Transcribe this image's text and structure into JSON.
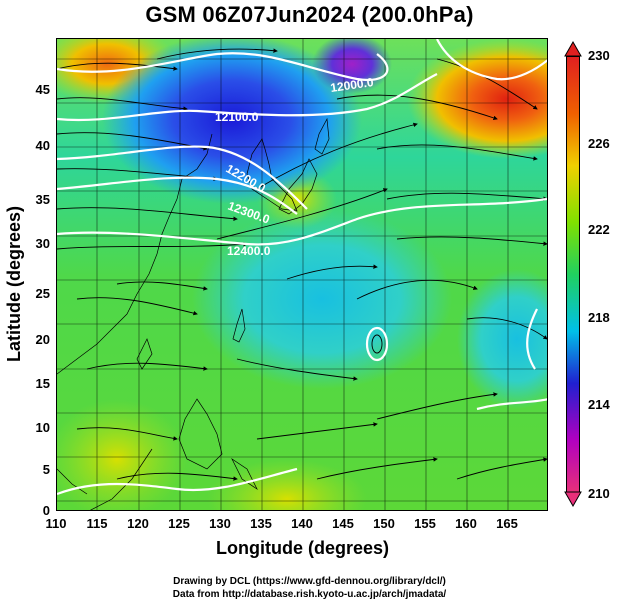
{
  "title": "GSM 06Z07Jun2024 (200.0hPa)",
  "x_axis": {
    "label": "Longitude (degrees)",
    "ticks": [
      "110",
      "115",
      "120",
      "125",
      "130",
      "135",
      "140",
      "145",
      "150",
      "155",
      "160",
      "165"
    ]
  },
  "y_axis": {
    "label": "Latitude  (degrees)",
    "ticks": [
      "0",
      "5",
      "10",
      "15",
      "20",
      "25",
      "30",
      "35",
      "40",
      "45"
    ]
  },
  "colorbar": {
    "ticks": [
      "230",
      "226",
      "222",
      "218",
      "214",
      "210"
    ],
    "colors": [
      "#e8307a",
      "#b000c0",
      "#2020d0",
      "#00c0e8",
      "#20d060",
      "#80e000",
      "#f0d000",
      "#f06000",
      "#e02020"
    ]
  },
  "contour_labels": [
    "12000.0",
    "12100.0",
    "12200.0",
    "12300.0",
    "12400.0"
  ],
  "credits": {
    "line1": "Drawing by DCL (https://www.gfd-dennou.org/library/dcl/)",
    "line2": "Data from http://database.rish.kyoto-u.ac.jp/arch/jmadata/"
  },
  "chart_data": {
    "type": "heatmap",
    "title": "GSM 06Z07Jun2024 (200.0hPa)",
    "xlabel": "Longitude (degrees)",
    "ylabel": "Latitude  (degrees)",
    "xlim": [
      110,
      170
    ],
    "ylim": [
      0,
      50
    ],
    "colorbar_range": [
      210,
      230
    ],
    "contour_levels": [
      12000.0,
      12100.0,
      12200.0,
      12300.0,
      12400.0
    ]
  }
}
